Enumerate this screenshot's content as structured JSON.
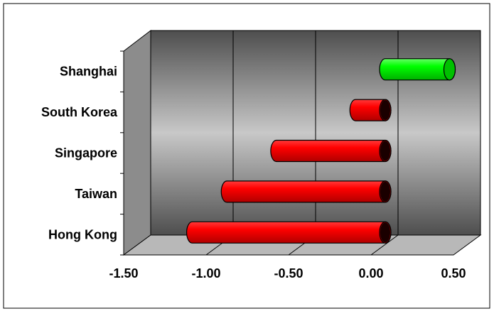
{
  "chart_data": {
    "type": "bar",
    "orientation": "horizontal",
    "categories": [
      "Hong Kong",
      "Taiwan",
      "Singapore",
      "South Korea",
      "Shanghai"
    ],
    "values": [
      -1.17,
      -0.96,
      -0.66,
      -0.18,
      0.39
    ],
    "xlim": [
      -1.5,
      0.5
    ],
    "xticks": [
      -1.5,
      -1.0,
      -0.5,
      0.0,
      0.5
    ],
    "xtick_labels": [
      "-1.50",
      "-1.00",
      "-0.50",
      "0.00",
      "0.50"
    ],
    "title": "",
    "xlabel": "",
    "ylabel": "",
    "grid": true,
    "legend": "none",
    "style": "3d-cylinder",
    "colors": {
      "negative": "#ff0000",
      "positive": "#00ff00",
      "wall_dark": "#5a5a5a",
      "wall_light": "#c4c4c4",
      "side_wall": "#8c8c8c",
      "floor": "#b8b8b8"
    }
  }
}
